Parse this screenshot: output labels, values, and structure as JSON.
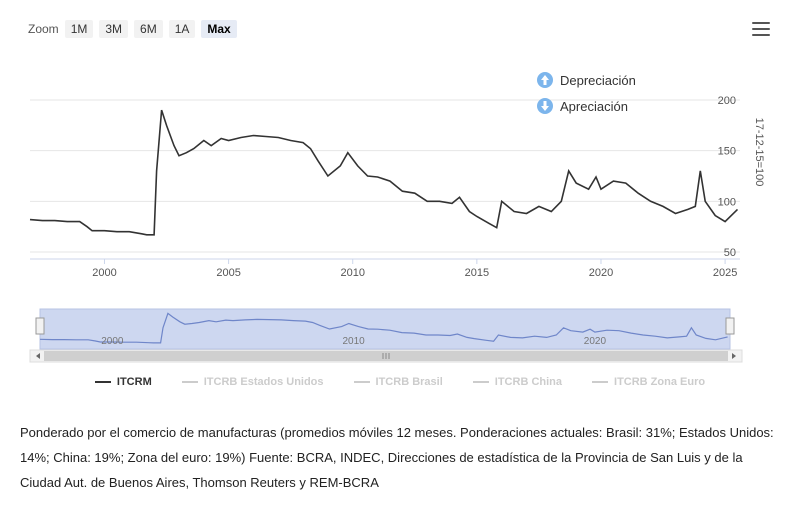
{
  "toolbar": {
    "zoom_label": "Zoom",
    "zoom_buttons": [
      "1M",
      "3M",
      "6M",
      "1A",
      "Max"
    ],
    "active": "Max"
  },
  "annotations": {
    "depreciation": "Depreciación",
    "appreciation": "Apreciación"
  },
  "footnote": "Ponderado por el comercio de manufacturas (promedios móviles 12 meses. Ponderaciones actuales: Brasil: 31%; Estados Unidos: 14%; China: 19%; Zona del euro: 19%) Fuente: BCRA, INDEC, Direcciones de estadística de la Provincia de San Luis y de la Ciudad Aut. de Buenos Aires, Thomson Reuters y REM-BCRA",
  "colors": {
    "line": "#333333",
    "navigator_fill": "#cdd7f0",
    "navigator_line": "#6f86c9",
    "icon": "#7cb5ec",
    "legend_inactive": "#cccccc"
  },
  "chart_data": {
    "type": "line",
    "title": "",
    "ylabel": "17-12-15=100",
    "xlim": [
      1997.0,
      2025.6
    ],
    "ylim": [
      50,
      200
    ],
    "yticks": [
      50,
      100,
      150,
      200
    ],
    "xticks": [
      2000,
      2005,
      2010,
      2015,
      2020,
      2025
    ],
    "navigator_ticks": [
      2000,
      2010,
      2020
    ],
    "series": [
      {
        "name": "ITCRM",
        "visible": true,
        "x": [
          1997.0,
          1997.5,
          1998.0,
          1998.5,
          1999.0,
          1999.3,
          1999.5,
          2000.0,
          2000.5,
          2001.0,
          2001.5,
          2001.7,
          2002.0,
          2002.1,
          2002.3,
          2002.5,
          2002.8,
          2003.0,
          2003.3,
          2003.6,
          2004.0,
          2004.3,
          2004.7,
          2005.0,
          2005.5,
          2006.0,
          2006.5,
          2007.0,
          2007.5,
          2008.0,
          2008.3,
          2008.6,
          2009.0,
          2009.5,
          2009.8,
          2010.2,
          2010.6,
          2011.0,
          2011.5,
          2012.0,
          2012.5,
          2013.0,
          2013.5,
          2014.0,
          2014.3,
          2014.7,
          2015.0,
          2015.5,
          2015.8,
          2016.0,
          2016.5,
          2017.0,
          2017.5,
          2018.0,
          2018.4,
          2018.7,
          2019.0,
          2019.5,
          2019.8,
          2020.0,
          2020.5,
          2021.0,
          2021.5,
          2022.0,
          2022.5,
          2023.0,
          2023.5,
          2023.8,
          2024.0,
          2024.2,
          2024.6,
          2025.0,
          2025.5
        ],
        "y": [
          82,
          81,
          81,
          80,
          80,
          75,
          71,
          71,
          70,
          70,
          68,
          67,
          67,
          130,
          190,
          175,
          155,
          145,
          148,
          152,
          160,
          155,
          162,
          160,
          163,
          165,
          164,
          163,
          160,
          158,
          152,
          140,
          125,
          135,
          148,
          135,
          125,
          124,
          120,
          110,
          108,
          100,
          100,
          98,
          104,
          90,
          85,
          78,
          74,
          100,
          90,
          88,
          95,
          90,
          100,
          130,
          118,
          112,
          124,
          112,
          120,
          118,
          108,
          100,
          95,
          88,
          92,
          95,
          130,
          100,
          86,
          80,
          92
        ]
      },
      {
        "name": "ITCRB Estados Unidos",
        "visible": false
      },
      {
        "name": "ITCRB Brasil",
        "visible": false
      },
      {
        "name": "ITCRB China",
        "visible": false
      },
      {
        "name": "ITCRB Zona Euro",
        "visible": false
      }
    ]
  }
}
